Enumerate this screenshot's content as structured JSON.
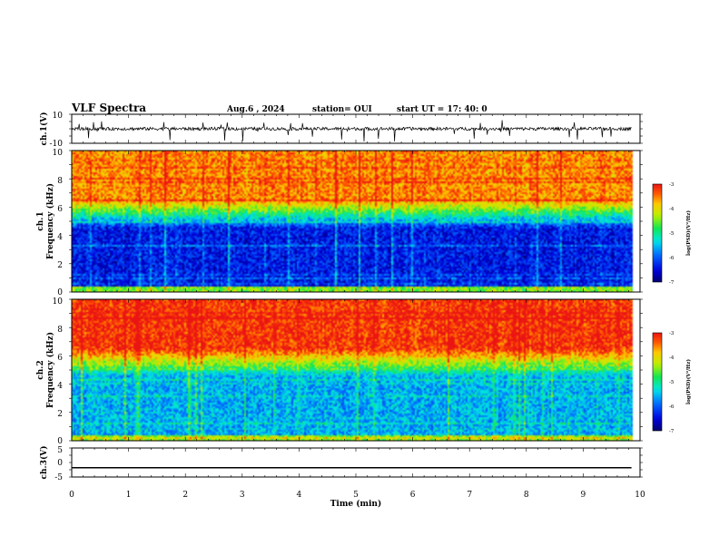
{
  "header": {
    "title": "VLF Spectra",
    "date": "Aug.6  , 2024",
    "station": "station= OUI",
    "start": "start  UT  =   17: 40: 0"
  },
  "chart_data": [
    {
      "type": "line",
      "ylabel": "ch.1(V)",
      "ylim": [
        -10,
        10
      ],
      "yticks": [
        "10",
        "-10"
      ],
      "xlim": [
        0,
        10
      ],
      "baseline": 0,
      "color": "#000000",
      "signal": "noise trace with impulsive spikes up to about +6 V and down to about -10 V",
      "x_end": 9.85
    },
    {
      "type": "heatmap",
      "ylabel": "ch.1\nFrequency (kHz)",
      "ylim": [
        0,
        10
      ],
      "yticks": [
        "0",
        "2",
        "4",
        "6",
        "8",
        "10"
      ],
      "xlim": [
        0,
        10
      ],
      "x_end": 9.85,
      "colorbar": {
        "label": "log(PSD)(V²/Hz)",
        "range": [
          -7,
          -3
        ],
        "ticks": [
          "-3",
          "-4",
          "-5",
          "-6",
          "-7"
        ]
      },
      "profile": {
        "low_band_kHz": [
          0,
          4.5
        ],
        "low_band_level": -6.4,
        "transition_kHz": [
          4.5,
          6.5
        ],
        "high_band_level": -3.6
      }
    },
    {
      "type": "heatmap",
      "ylabel": "ch.2\nFrequency (kHz)",
      "ylim": [
        0,
        10
      ],
      "yticks": [
        "0",
        "2",
        "4",
        "6",
        "8",
        "10"
      ],
      "xlim": [
        0,
        10
      ],
      "x_end": 9.85,
      "colorbar": {
        "label": "log(PSD)(V²/Hz)",
        "range": [
          -7,
          -3
        ],
        "ticks": [
          "-3",
          "-4",
          "-5",
          "-6",
          "-7"
        ]
      },
      "profile": {
        "low_band_kHz": [
          0,
          4.5
        ],
        "low_band_level": -5.6,
        "transition_kHz": [
          4.5,
          6.5
        ],
        "high_band_level": -3.2
      }
    },
    {
      "type": "line",
      "ylabel": "ch.3(V)",
      "ylim": [
        -5,
        5
      ],
      "yticks": [
        "5",
        "0",
        "-5"
      ],
      "xlim": [
        0,
        10
      ],
      "baseline": -1.8,
      "color": "#000000",
      "x_end": 9.85
    }
  ],
  "xaxis": {
    "label": "Time (min)",
    "ticks": [
      "0",
      "1",
      "2",
      "3",
      "4",
      "5",
      "6",
      "7",
      "8",
      "9",
      "10"
    ]
  }
}
